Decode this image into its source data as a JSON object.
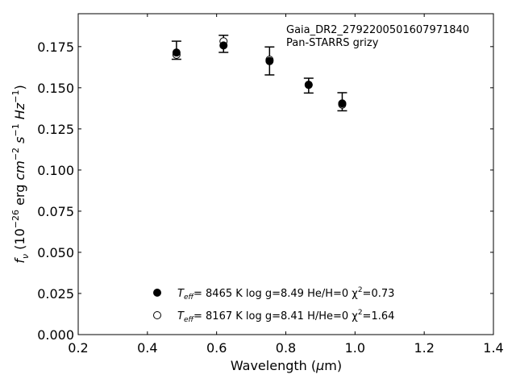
{
  "chart_data": {
    "type": "scatter",
    "annotation": {
      "line1": "Gaia_DR2_2792200501607971840",
      "line2": "Pan-STARRS grizy"
    },
    "x_axis": {
      "range": [
        0.2,
        1.4
      ],
      "ticks": [
        0.2,
        0.4,
        0.6,
        0.8,
        1.0,
        1.2,
        1.4
      ],
      "tick_labels": [
        "0.2",
        "0.4",
        "0.6",
        "0.8",
        "1.0",
        "1.2",
        "1.4"
      ],
      "label_prefix": "Wavelength (",
      "label_mu": "μ",
      "label_suffix": "m)"
    },
    "y_axis": {
      "range": [
        0.0,
        0.195
      ],
      "ticks": [
        0.0,
        0.025,
        0.05,
        0.075,
        0.1,
        0.125,
        0.15,
        0.175
      ],
      "tick_labels": [
        "0.000",
        "0.025",
        "0.050",
        "0.075",
        "0.100",
        "0.125",
        "0.150",
        "0.175"
      ],
      "label": "f_ν (10^−26 erg cm^−2 s^−1 Hz^−1)"
    },
    "observed": {
      "x": [
        0.484,
        0.62,
        0.753,
        0.866,
        0.963
      ],
      "y": [
        0.1728,
        0.1767,
        0.1663,
        0.1513,
        0.1415
      ],
      "yerr": [
        0.0055,
        0.0052,
        0.0085,
        0.0045,
        0.0055
      ]
    },
    "series": [
      {
        "marker": "filled-circle",
        "legend": {
          "teff_label": "T",
          "teff_sub": "eff",
          "text1": "=  8465 K  log g=8.49  He/H=0  χ",
          "chi_exp": "2",
          "text2": "=0.73"
        },
        "x": [
          0.484,
          0.62,
          0.753,
          0.866,
          0.963
        ],
        "y": [
          0.1714,
          0.1757,
          0.1662,
          0.1518,
          0.1405
        ]
      },
      {
        "marker": "open-circle",
        "legend": {
          "teff_label": "T",
          "teff_sub": "eff",
          "text1": "=  8167 K  log g=8.41  H/He=0  χ",
          "chi_exp": "2",
          "text2": "=1.64"
        },
        "x": [
          0.484,
          0.62,
          0.753,
          0.866,
          0.963
        ],
        "y": [
          0.1701,
          0.1782,
          0.167,
          0.1518,
          0.1398
        ]
      }
    ],
    "grid": false,
    "legend_position": "lower-center"
  }
}
